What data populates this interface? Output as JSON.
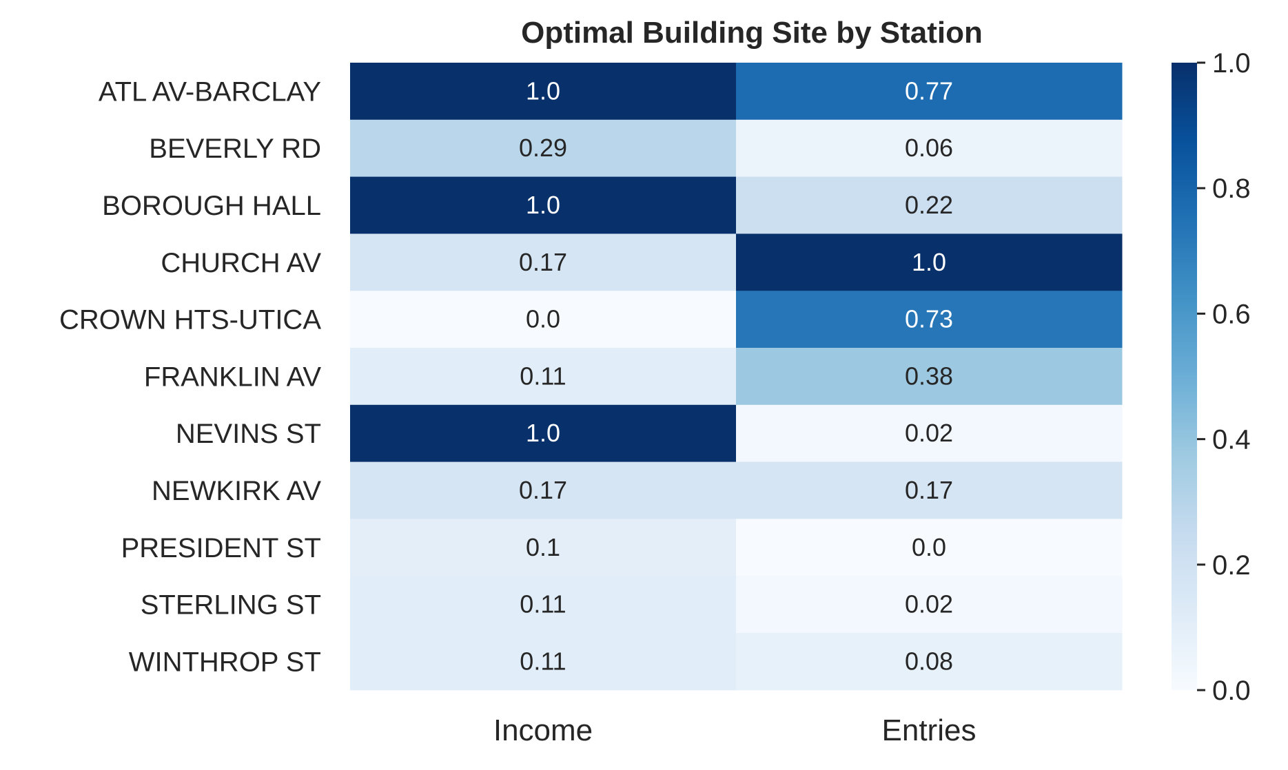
{
  "chart_data": {
    "type": "heatmap",
    "title": "Optimal Building Site by Station",
    "columns": [
      "Income",
      "Entries"
    ],
    "rows": [
      "ATL AV-BARCLAY",
      "BEVERLY RD",
      "BOROUGH HALL",
      "CHURCH AV",
      "CROWN HTS-UTICA",
      "FRANKLIN AV",
      "NEVINS ST",
      "NEWKIRK AV",
      "PRESIDENT ST",
      "STERLING ST",
      "WINTHROP ST"
    ],
    "values": [
      [
        1.0,
        0.77
      ],
      [
        0.29,
        0.06
      ],
      [
        1.0,
        0.22
      ],
      [
        0.17,
        1.0
      ],
      [
        0.0,
        0.73
      ],
      [
        0.11,
        0.38
      ],
      [
        1.0,
        0.02
      ],
      [
        0.17,
        0.17
      ],
      [
        0.1,
        0.0
      ],
      [
        0.11,
        0.02
      ],
      [
        0.11,
        0.08
      ]
    ],
    "annotations": [
      [
        "1.0",
        "0.77"
      ],
      [
        "0.29",
        "0.06"
      ],
      [
        "1.0",
        "0.22"
      ],
      [
        "0.17",
        "1.0"
      ],
      [
        "0.0",
        "0.73"
      ],
      [
        "0.11",
        "0.38"
      ],
      [
        "1.0",
        "0.02"
      ],
      [
        "0.17",
        "0.17"
      ],
      [
        "0.1",
        "0.0"
      ],
      [
        "0.11",
        "0.02"
      ],
      [
        "0.11",
        "0.08"
      ]
    ],
    "colormap": "Blues",
    "colorbar": {
      "range": [
        0.0,
        1.0
      ],
      "ticks": [
        "0.0",
        "0.2",
        "0.4",
        "0.6",
        "0.8",
        "1.0"
      ]
    },
    "colors": {
      "text_dark": "#262626",
      "text_light": "#ffffff"
    }
  }
}
